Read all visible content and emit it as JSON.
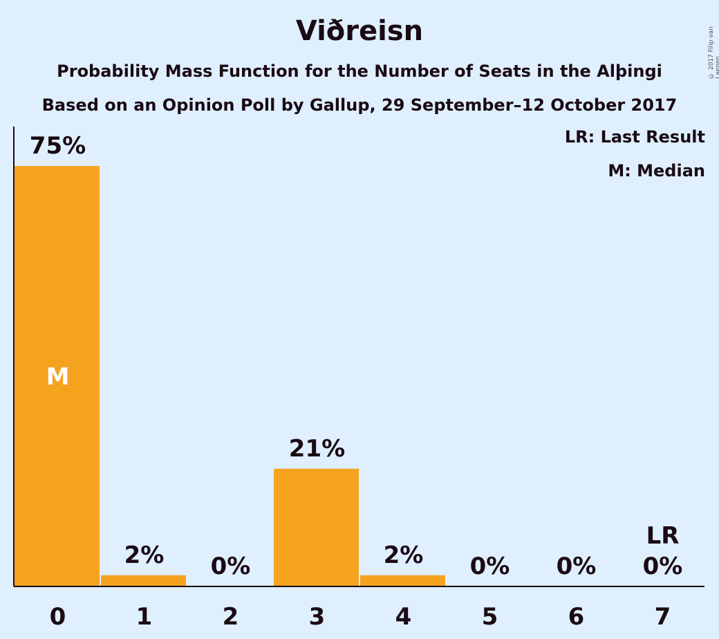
{
  "chart_data": {
    "type": "bar",
    "title": "Viðreisn",
    "subtitle": "Probability Mass Function for the Number of Seats in the Alþingi",
    "subtitle2": "Based on an Opinion Poll by Gallup, 29 September–12 October 2017",
    "categories": [
      "0",
      "1",
      "2",
      "3",
      "4",
      "5",
      "6",
      "7"
    ],
    "values": [
      75,
      2,
      0,
      21,
      2,
      0,
      0,
      0
    ],
    "value_labels": [
      "75%",
      "2%",
      "0%",
      "21%",
      "2%",
      "0%",
      "0%",
      "0%"
    ],
    "ylim": [
      0,
      80
    ],
    "median_index": 0,
    "median_marker": "M",
    "last_result_index": 7,
    "last_result_marker": "LR",
    "legend": [
      "LR: Last Result",
      "M: Median"
    ],
    "legend_position": "top-right",
    "bar_color": "#f5a31e",
    "background_color": "#dfeffe",
    "copyright": "© 2017 Filip van Laenen"
  }
}
